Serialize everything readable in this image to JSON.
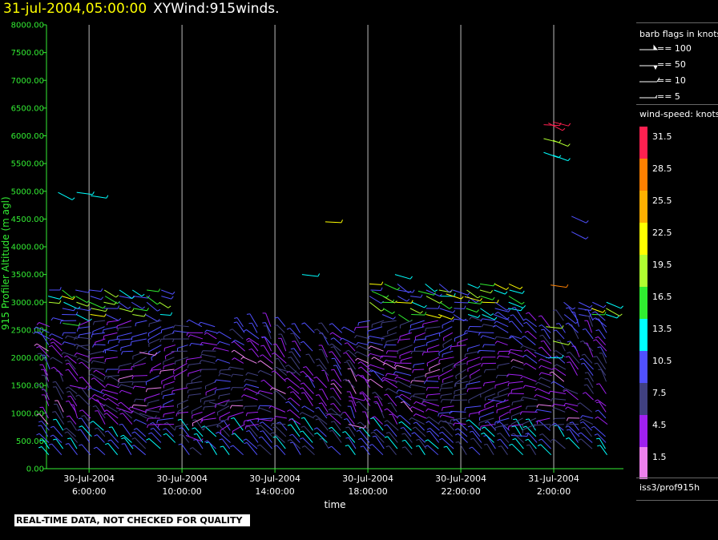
{
  "header": {
    "datetime": "31-jul-2004,05:00:00",
    "product": "XYWind:915winds."
  },
  "footer": {
    "qc_notice": "REAL-TIME DATA, NOT CHECKED FOR QUALITY"
  },
  "legend": {
    "barb_title": "barb flags in knots",
    "barbs": [
      "== 100",
      "== 50",
      "== 10",
      "== 5"
    ],
    "speed_title": "wind-speed: knots",
    "speed_classes": [
      {
        "label": "31.5",
        "color": "#ff2050"
      },
      {
        "label": "28.5",
        "color": "#ff8000"
      },
      {
        "label": "25.5",
        "color": "#ffb000"
      },
      {
        "label": "22.5",
        "color": "#ffff00"
      },
      {
        "label": "19.5",
        "color": "#b0ff30"
      },
      {
        "label": "16.5",
        "color": "#30ee30"
      },
      {
        "label": "13.5",
        "color": "#00ffff"
      },
      {
        "label": "10.5",
        "color": "#5050ff"
      },
      {
        "label": "7.5",
        "color": "#404080"
      },
      {
        "label": "4.5",
        "color": "#a020f0"
      },
      {
        "label": "1.5",
        "color": "#ee80ee"
      }
    ],
    "station": "iss3/prof915h"
  },
  "chart_data": {
    "type": "scatter",
    "title": "XYWind:915winds.",
    "xlabel": "time",
    "ylabel": "915 Profiler Altitude (m agl)",
    "ylim": [
      0,
      8000
    ],
    "yticks": [
      "0.00",
      "500.00",
      "1000.00",
      "1500.00",
      "2000.00",
      "2500.00",
      "3000.00",
      "3500.00",
      "4000.00",
      "4500.00",
      "5000.00",
      "5500.00",
      "6000.00",
      "6500.00",
      "7000.00",
      "7500.00",
      "8000.00"
    ],
    "xlim": [
      "2004-07-30 04:10",
      "2004-07-31 05:00"
    ],
    "xticks": [
      {
        "date": "30-Jul-2004",
        "time": "6:00:00"
      },
      {
        "date": "30-Jul-2004",
        "time": "10:00:00"
      },
      {
        "date": "30-Jul-2004",
        "time": "14:00:00"
      },
      {
        "date": "30-Jul-2004",
        "time": "18:00:00"
      },
      {
        "date": "30-Jul-2004",
        "time": "22:00:00"
      },
      {
        "date": "31-Jul-2004",
        "time": "2:00:00"
      }
    ],
    "grid": "vertical lines at each x tick",
    "series": [
      {
        "name": "31.5",
        "points": [
          [
            21.4,
            6200
          ],
          [
            21.6,
            6230
          ],
          [
            21.8,
            6250
          ]
        ]
      },
      {
        "name": "28.5",
        "points": [
          [
            21.7,
            3310
          ]
        ]
      },
      {
        "name": "22.5",
        "points": [
          [
            12.0,
            4450
          ],
          [
            17.2,
            3150
          ],
          [
            18.0,
            3100
          ]
        ]
      },
      {
        "name": "19.5",
        "points": [
          [
            21.4,
            5950
          ],
          [
            21.8,
            5920
          ],
          [
            21.5,
            2560
          ],
          [
            21.8,
            2300
          ]
        ]
      },
      {
        "name": "16.5",
        "points": [
          [
            0.7,
            2620
          ],
          [
            14.0,
            3200
          ],
          [
            16.0,
            3200
          ]
        ]
      },
      {
        "name": "13.5",
        "points": [
          [
            21.4,
            5700
          ],
          [
            21.8,
            5650
          ],
          [
            0.5,
            4980
          ],
          [
            1.3,
            4980
          ],
          [
            1.9,
            4920
          ],
          [
            11.0,
            3500
          ],
          [
            15.0,
            3500
          ],
          [
            21.5,
            2000
          ]
        ]
      },
      {
        "name": "10.5",
        "points": [
          [
            22.6,
            4550
          ],
          [
            22.6,
            4270
          ],
          [
            19.0,
            1250
          ],
          [
            20.0,
            600
          ],
          [
            21.0,
            2100
          ]
        ]
      },
      {
        "name": "7.5",
        "points": [
          [
            4.0,
            1000
          ],
          [
            7.0,
            1200
          ],
          [
            10.0,
            1800
          ],
          [
            12.0,
            1000
          ]
        ]
      },
      {
        "name": "4.5",
        "points": [
          [
            1.0,
            1500
          ],
          [
            3.0,
            1100
          ],
          [
            6.0,
            600
          ],
          [
            9.0,
            900
          ],
          [
            13.0,
            1300
          ]
        ]
      },
      {
        "name": "1.5",
        "points": [
          [
            4.0,
            2100
          ],
          [
            13.0,
            800
          ]
        ]
      }
    ]
  }
}
